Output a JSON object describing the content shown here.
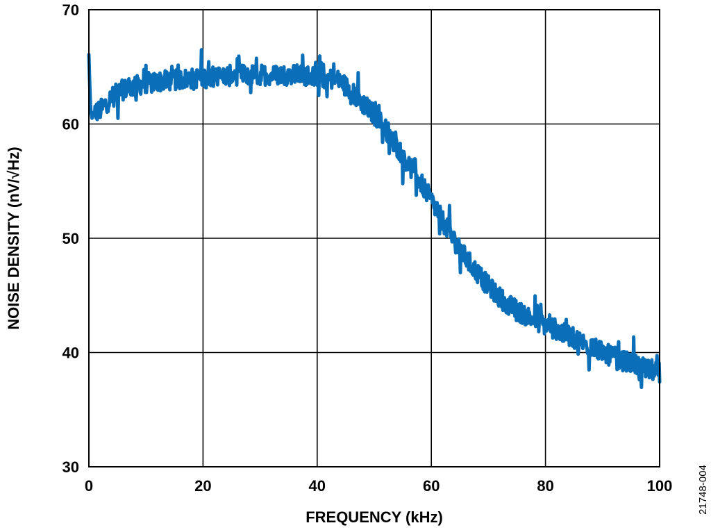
{
  "chart_data": {
    "type": "line",
    "title": "",
    "xlabel": "FREQUENCY (kHz)",
    "ylabel": "NOISE DENSITY (nV/√Hz)",
    "xlim": [
      0,
      100
    ],
    "ylim": [
      30,
      70
    ],
    "xticks": [
      0,
      20,
      40,
      60,
      80,
      100
    ],
    "yticks": [
      30,
      40,
      50,
      60,
      70
    ],
    "grid": true,
    "series_color": "#0a6fb8",
    "series": [
      {
        "x": [
          0,
          0.3,
          0.6,
          1,
          2,
          3,
          4,
          5,
          6,
          8,
          10,
          12,
          14,
          16,
          18,
          20,
          22,
          24,
          26,
          28,
          30,
          32,
          34,
          36,
          38,
          40,
          42,
          44,
          45,
          46,
          47,
          48,
          50,
          52,
          54,
          56,
          58,
          60,
          62,
          64,
          66,
          68,
          70,
          72,
          74,
          76,
          78,
          80,
          82,
          84,
          86,
          88,
          90,
          92,
          94,
          96,
          98,
          100
        ],
        "y": [
          66.0,
          61.0,
          60.6,
          61.0,
          61.2,
          61.8,
          62.3,
          62.7,
          63.0,
          63.3,
          63.6,
          63.7,
          63.8,
          63.9,
          64.0,
          64.1,
          64.2,
          64.2,
          64.3,
          64.3,
          64.3,
          64.3,
          64.3,
          64.3,
          64.3,
          64.2,
          64.0,
          63.8,
          63.3,
          62.8,
          62.3,
          61.8,
          60.8,
          59.6,
          58.0,
          56.5,
          55.0,
          53.3,
          51.5,
          49.8,
          48.3,
          47.0,
          45.8,
          44.8,
          44.0,
          43.4,
          42.9,
          42.4,
          42.0,
          41.5,
          41.0,
          40.5,
          40.0,
          39.6,
          39.2,
          38.9,
          38.6,
          38.2
        ]
      }
    ]
  },
  "figure_id": "21748-004"
}
